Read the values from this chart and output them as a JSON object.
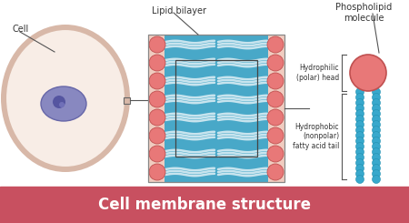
{
  "title": "Cell membrane structure",
  "title_bg": "#c85060",
  "title_color": "#ffffff",
  "bg_color": "#ffffff",
  "cell_outer_color": "#f0e0d4",
  "cell_border_color": "#d8b8a8",
  "cell_inner_color": "#f8ede6",
  "nucleus_color": "#8888c0",
  "nucleus_border": "#6666a8",
  "nucleolus_color": "#5555a0",
  "head_color": "#e87878",
  "head_border": "#c05050",
  "tail_color": "#38a8cc",
  "tail_border": "#2090b0",
  "bilayer_bg": "#c8e8f4",
  "bilayer_inner_color": "#48a8c8",
  "left_strip_color": "#f0ccc0",
  "white_lines": "#ddeeff",
  "cell_label": "Cell",
  "bilayer_label": "Lipid bilayer",
  "molecule_label": "Phospholipid\nmolecule",
  "hydrophilic_label": "Hydrophilic\n(polar) head",
  "hydrophobic_label": "Hydrophobic\n(nonpolar)\nfatty acid tail",
  "label_color": "#333333",
  "arrow_color": "#555555"
}
